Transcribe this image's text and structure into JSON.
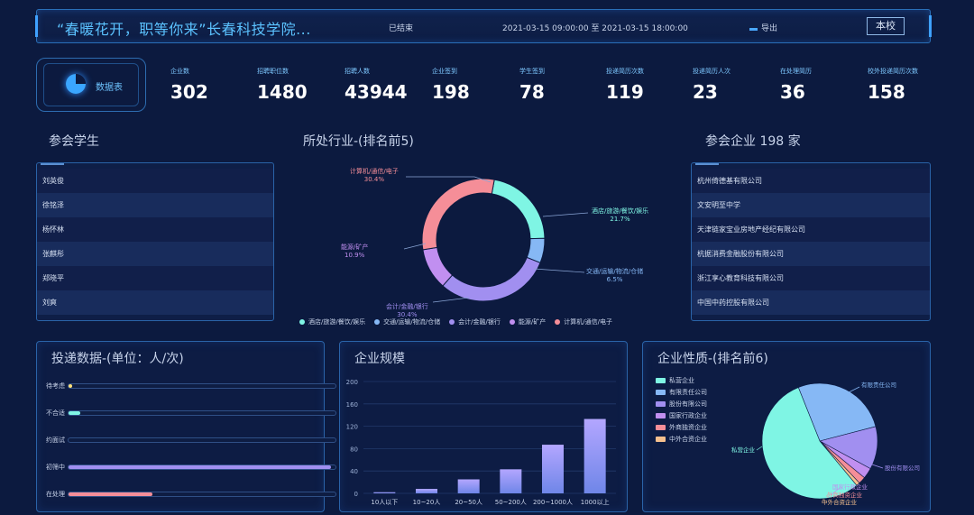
{
  "header": {
    "title": "“春暖花开，职等你来”长春科技学院...",
    "status": "已结束",
    "time_range": "2021-03-15 09:00:00 至 2021-03-15 18:00:00",
    "export_label": "导出",
    "scope_button": "本校"
  },
  "stats_badge": {
    "label": "数据表",
    "icon": "pie-chart-icon"
  },
  "stats": [
    {
      "label": "企业数",
      "value": "302"
    },
    {
      "label": "招聘职位数",
      "value": "1480"
    },
    {
      "label": "招聘人数",
      "value": "43944"
    },
    {
      "label": "企业签到",
      "value": "198"
    },
    {
      "label": "学生签到",
      "value": "78"
    },
    {
      "label": "投递简历次数",
      "value": "119"
    },
    {
      "label": "投递简历人次",
      "value": "23"
    },
    {
      "label": "在处理简历",
      "value": "36"
    },
    {
      "label": "校外投递简历次数",
      "value": "158"
    }
  ],
  "students": {
    "title": "参会学生",
    "items": [
      "刘英俊",
      "徐铭泽",
      "杨怀林",
      "张麒彤",
      "郑晓平",
      "刘爽"
    ]
  },
  "industry": {
    "title": "所处行业-(排名前5)",
    "chart_data": {
      "type": "pie",
      "categories": [
        "酒店/旅游/餐饮/娱乐",
        "交通/运输/物流/仓储",
        "会计/金融/银行",
        "能源/矿产",
        "计算机/通信/电子"
      ],
      "values": [
        21.7,
        6.5,
        30.4,
        10.9,
        30.4
      ],
      "value_labels": [
        "21.7%",
        "6.5%",
        "30.4%",
        "10.9%",
        "30.4%"
      ],
      "colors": [
        "#7ff5e4",
        "#86b8f5",
        "#a18ff0",
        "#c18ff0",
        "#f58e98"
      ],
      "legend": "bottom"
    }
  },
  "companies": {
    "title": "参会企业 198 家",
    "items": [
      "杭州倚德基有限公司",
      "文安明至中学",
      "天津链家宝业房地产经纪有限公司",
      "杭据消费金融股份有限公司",
      "浙江享心教育科技有限公司",
      "中国中药控股有限公司"
    ]
  },
  "delivery": {
    "title": "投递数据-(单位：人/次)",
    "chart_data": {
      "type": "bar",
      "orientation": "horizontal",
      "categories": [
        "待考虑",
        "不合适",
        "约面试",
        "初筛中",
        "在处理"
      ],
      "values": [
        1,
        5,
        0,
        113,
        36
      ],
      "max": 115,
      "colors": [
        "#ffe27a",
        "#7ff5e4",
        "#86b8f5",
        "#a18ff0",
        "#f58e98"
      ]
    }
  },
  "scale": {
    "title": "企业规模",
    "chart_data": {
      "type": "bar",
      "categories": [
        "10人以下",
        "10~20人",
        "20~50人",
        "50~200人",
        "200~1000人",
        "1000以上"
      ],
      "values": [
        2,
        8,
        25,
        43,
        87,
        133
      ],
      "ylim": [
        0,
        200
      ],
      "yticks": [
        0,
        40,
        80,
        120,
        160,
        200
      ],
      "grid": true
    }
  },
  "nature": {
    "title": "企业性质-(排名前6)",
    "chart_data": {
      "type": "pie",
      "categories": [
        "私营企业",
        "有限责任公司",
        "股份有限公司",
        "国家行政企业",
        "外商独资企业",
        "中外合资企业"
      ],
      "values": [
        55,
        27,
        12,
        3,
        2,
        1
      ],
      "colors": [
        "#7ff5e4",
        "#86b8f5",
        "#a18ff0",
        "#c18ff0",
        "#f58e98",
        "#f5c08e"
      ],
      "legend": "top-left"
    }
  }
}
